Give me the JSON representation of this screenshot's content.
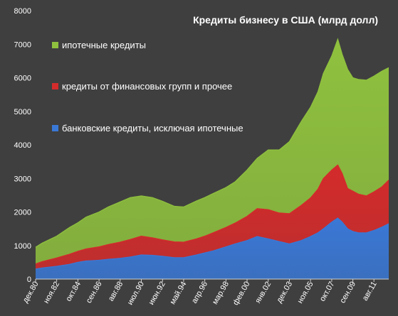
{
  "chart_data": {
    "type": "area",
    "stacked": true,
    "title": "Кредиты бизнесу в США (млрд долл)",
    "ylim": [
      0,
      8000
    ],
    "y_ticks": [
      0,
      1000,
      2000,
      3000,
      4000,
      5000,
      6000,
      7000,
      8000
    ],
    "y_tick_labels": [
      "0",
      "1000",
      "2000",
      "3000",
      "4000",
      "5000",
      "6000",
      "7000",
      "8000"
    ],
    "x_range": [
      1980.92,
      2012.92
    ],
    "x_ticks": [
      1980.92,
      1982.83,
      1984.75,
      1986.67,
      1988.58,
      1990.5,
      1992.42,
      1994.33,
      1996.25,
      1998.17,
      2000.08,
      2002.0,
      2003.92,
      2005.83,
      2007.75,
      2009.67,
      2011.58
    ],
    "x_tick_labels": [
      "дек.80",
      "ноя.82",
      "окт.84",
      "сен.86",
      "авг.88",
      "июл.90",
      "июн.92",
      "май.94",
      "апр.96",
      "мар.98",
      "фев.00",
      "янв.02",
      "дек.03",
      "ноя.05",
      "окт.07",
      "сен.09",
      "авг.11"
    ],
    "x": [
      1980.92,
      1981.5,
      1982.83,
      1984.0,
      1984.75,
      1985.5,
      1986.67,
      1987.5,
      1988.58,
      1989.5,
      1990.5,
      1991.5,
      1992.42,
      1993.5,
      1994.33,
      1995.5,
      1996.25,
      1997.0,
      1998.17,
      1999.0,
      2000.08,
      2001.0,
      2002.0,
      2003.0,
      2003.92,
      2005.0,
      2005.83,
      2006.5,
      2007.0,
      2007.75,
      2008.3,
      2008.7,
      2009.2,
      2009.67,
      2010.2,
      2010.9,
      2011.58,
      2012.3,
      2012.92
    ],
    "series": [
      {
        "name": "банковские кредиты, исключая ипотечные",
        "color": "#3a78d6",
        "values": [
          300,
          330,
          380,
          440,
          500,
          540,
          560,
          590,
          620,
          660,
          720,
          710,
          680,
          640,
          640,
          720,
          780,
          840,
          960,
          1050,
          1150,
          1270,
          1200,
          1120,
          1050,
          1150,
          1270,
          1380,
          1500,
          1700,
          1820,
          1700,
          1500,
          1420,
          1380,
          1380,
          1450,
          1550,
          1650
        ]
      },
      {
        "name": "кредиты от финансовых групп и прочее",
        "color": "#d42b2b",
        "values": [
          150,
          190,
          250,
          300,
          330,
          360,
          400,
          440,
          480,
          520,
          560,
          520,
          490,
          470,
          460,
          480,
          500,
          540,
          580,
          620,
          720,
          830,
          870,
          850,
          900,
          1050,
          1150,
          1300,
          1500,
          1550,
          1580,
          1450,
          1200,
          1200,
          1150,
          1100,
          1150,
          1200,
          1300
        ]
      },
      {
        "name": "ипотечные кредиты",
        "color": "#8fc13e",
        "values": [
          500,
          550,
          650,
          800,
          850,
          950,
          1040,
          1120,
          1200,
          1250,
          1200,
          1200,
          1150,
          1060,
          1050,
          1130,
          1150,
          1170,
          1190,
          1230,
          1380,
          1500,
          1780,
          1880,
          2150,
          2500,
          2700,
          2900,
          3130,
          3400,
          3750,
          3550,
          3550,
          3380,
          3420,
          3450,
          3450,
          3450,
          3350
        ]
      }
    ],
    "legend_position": "top-left",
    "legend_order": [
      2,
      1,
      0
    ],
    "grid": false
  }
}
